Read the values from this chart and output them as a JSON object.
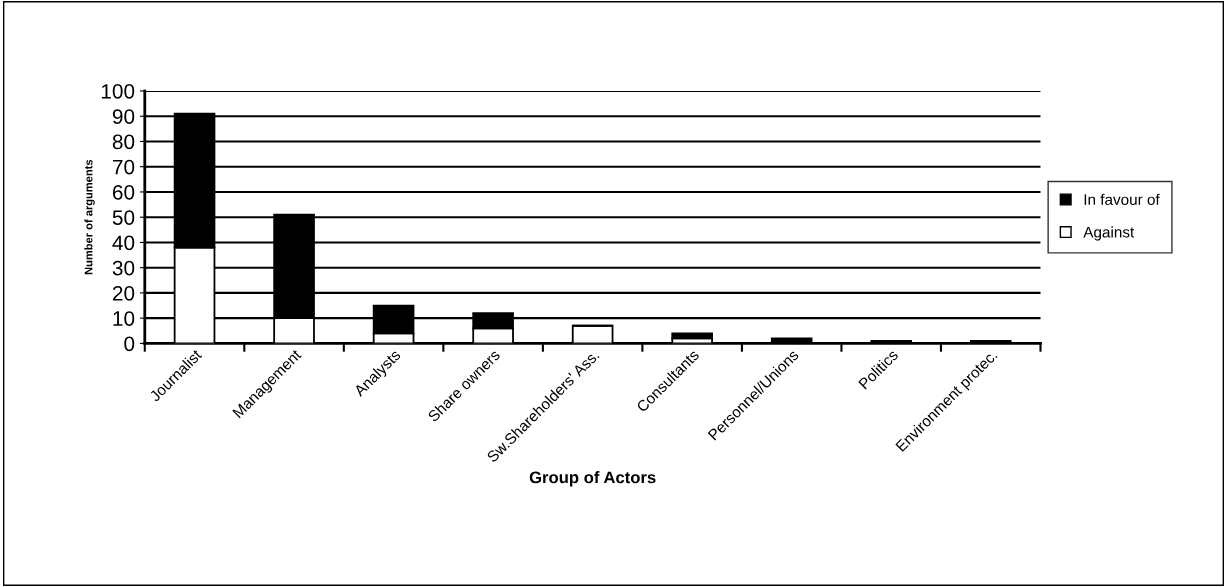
{
  "chart_data": {
    "type": "bar",
    "stacked": true,
    "xlabel": "Group of Actors",
    "ylabel": "Number of arguments",
    "categories": [
      "Journalist",
      "Management",
      "Analysts",
      "Share owners",
      "Sw.Shareholders' Ass.",
      "Consultants",
      "Personnel/Unions",
      "Politics",
      "Environment protec."
    ],
    "series": [
      {
        "name": "Against",
        "color": "#ffffff",
        "values": [
          38,
          10,
          4,
          6,
          7,
          2,
          0,
          0,
          0
        ]
      },
      {
        "name": "In favour of",
        "color": "#000000",
        "values": [
          53,
          41,
          11,
          6,
          0,
          2,
          2,
          1,
          1
        ]
      }
    ],
    "ylim": [
      0,
      100
    ],
    "yticks": [
      0,
      10,
      20,
      30,
      40,
      50,
      60,
      70,
      80,
      90,
      100
    ],
    "grid": "y",
    "legend": "right"
  }
}
